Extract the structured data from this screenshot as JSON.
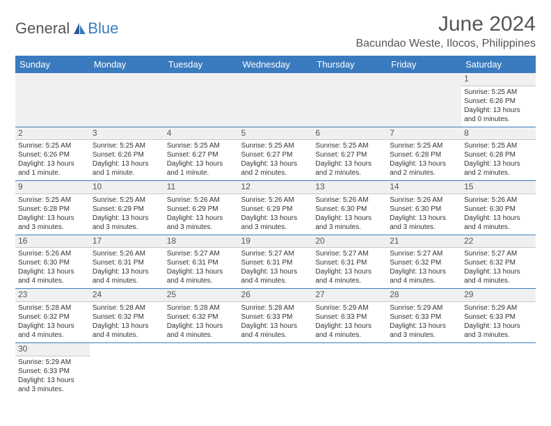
{
  "logo": {
    "text1": "General",
    "text2": "Blue"
  },
  "title": "June 2024",
  "location": "Bacundao Weste, Ilocos, Philippines",
  "colors": {
    "header_bg": "#3a7bbf",
    "header_text": "#ffffff",
    "day_header_bg": "#f0f0f0",
    "border": "#3a7bbf"
  },
  "weekdays": [
    "Sunday",
    "Monday",
    "Tuesday",
    "Wednesday",
    "Thursday",
    "Friday",
    "Saturday"
  ],
  "weeks": [
    [
      null,
      null,
      null,
      null,
      null,
      null,
      {
        "n": "1",
        "sr": "5:25 AM",
        "ss": "6:26 PM",
        "dl": "13 hours and 0 minutes."
      }
    ],
    [
      {
        "n": "2",
        "sr": "5:25 AM",
        "ss": "6:26 PM",
        "dl": "13 hours and 1 minute."
      },
      {
        "n": "3",
        "sr": "5:25 AM",
        "ss": "6:26 PM",
        "dl": "13 hours and 1 minute."
      },
      {
        "n": "4",
        "sr": "5:25 AM",
        "ss": "6:27 PM",
        "dl": "13 hours and 1 minute."
      },
      {
        "n": "5",
        "sr": "5:25 AM",
        "ss": "6:27 PM",
        "dl": "13 hours and 2 minutes."
      },
      {
        "n": "6",
        "sr": "5:25 AM",
        "ss": "6:27 PM",
        "dl": "13 hours and 2 minutes."
      },
      {
        "n": "7",
        "sr": "5:25 AM",
        "ss": "6:28 PM",
        "dl": "13 hours and 2 minutes."
      },
      {
        "n": "8",
        "sr": "5:25 AM",
        "ss": "6:28 PM",
        "dl": "13 hours and 2 minutes."
      }
    ],
    [
      {
        "n": "9",
        "sr": "5:25 AM",
        "ss": "6:28 PM",
        "dl": "13 hours and 3 minutes."
      },
      {
        "n": "10",
        "sr": "5:25 AM",
        "ss": "6:29 PM",
        "dl": "13 hours and 3 minutes."
      },
      {
        "n": "11",
        "sr": "5:26 AM",
        "ss": "6:29 PM",
        "dl": "13 hours and 3 minutes."
      },
      {
        "n": "12",
        "sr": "5:26 AM",
        "ss": "6:29 PM",
        "dl": "13 hours and 3 minutes."
      },
      {
        "n": "13",
        "sr": "5:26 AM",
        "ss": "6:30 PM",
        "dl": "13 hours and 3 minutes."
      },
      {
        "n": "14",
        "sr": "5:26 AM",
        "ss": "6:30 PM",
        "dl": "13 hours and 3 minutes."
      },
      {
        "n": "15",
        "sr": "5:26 AM",
        "ss": "6:30 PM",
        "dl": "13 hours and 4 minutes."
      }
    ],
    [
      {
        "n": "16",
        "sr": "5:26 AM",
        "ss": "6:30 PM",
        "dl": "13 hours and 4 minutes."
      },
      {
        "n": "17",
        "sr": "5:26 AM",
        "ss": "6:31 PM",
        "dl": "13 hours and 4 minutes."
      },
      {
        "n": "18",
        "sr": "5:27 AM",
        "ss": "6:31 PM",
        "dl": "13 hours and 4 minutes."
      },
      {
        "n": "19",
        "sr": "5:27 AM",
        "ss": "6:31 PM",
        "dl": "13 hours and 4 minutes."
      },
      {
        "n": "20",
        "sr": "5:27 AM",
        "ss": "6:31 PM",
        "dl": "13 hours and 4 minutes."
      },
      {
        "n": "21",
        "sr": "5:27 AM",
        "ss": "6:32 PM",
        "dl": "13 hours and 4 minutes."
      },
      {
        "n": "22",
        "sr": "5:27 AM",
        "ss": "6:32 PM",
        "dl": "13 hours and 4 minutes."
      }
    ],
    [
      {
        "n": "23",
        "sr": "5:28 AM",
        "ss": "6:32 PM",
        "dl": "13 hours and 4 minutes."
      },
      {
        "n": "24",
        "sr": "5:28 AM",
        "ss": "6:32 PM",
        "dl": "13 hours and 4 minutes."
      },
      {
        "n": "25",
        "sr": "5:28 AM",
        "ss": "6:32 PM",
        "dl": "13 hours and 4 minutes."
      },
      {
        "n": "26",
        "sr": "5:28 AM",
        "ss": "6:33 PM",
        "dl": "13 hours and 4 minutes."
      },
      {
        "n": "27",
        "sr": "5:29 AM",
        "ss": "6:33 PM",
        "dl": "13 hours and 4 minutes."
      },
      {
        "n": "28",
        "sr": "5:29 AM",
        "ss": "6:33 PM",
        "dl": "13 hours and 3 minutes."
      },
      {
        "n": "29",
        "sr": "5:29 AM",
        "ss": "6:33 PM",
        "dl": "13 hours and 3 minutes."
      }
    ],
    [
      {
        "n": "30",
        "sr": "5:29 AM",
        "ss": "6:33 PM",
        "dl": "13 hours and 3 minutes."
      },
      null,
      null,
      null,
      null,
      null,
      null
    ]
  ],
  "labels": {
    "sunrise": "Sunrise:",
    "sunset": "Sunset:",
    "daylight": "Daylight:"
  }
}
